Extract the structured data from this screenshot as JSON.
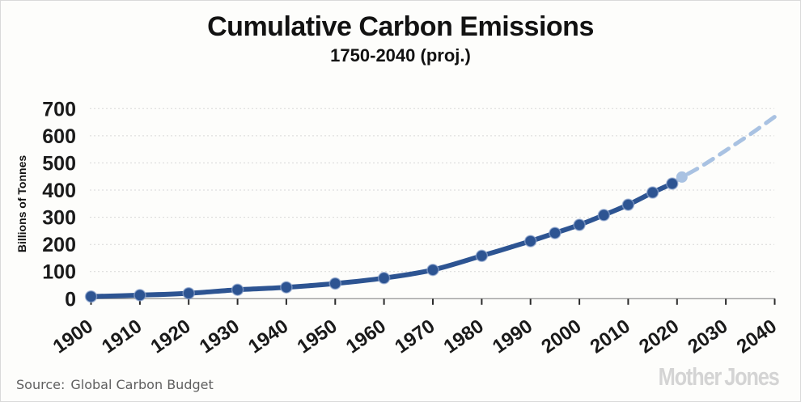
{
  "header": {
    "title": "Cumulative Carbon Emissions",
    "subtitle": "1750-2040 (proj.)"
  },
  "chart_data": {
    "type": "line",
    "title": "Cumulative Carbon Emissions",
    "subtitle": "1750-2040 (proj.)",
    "xlabel": "",
    "ylabel": "Billions of Tonnes",
    "xlim": [
      1900,
      2040
    ],
    "ylim": [
      0,
      700
    ],
    "x_ticks": [
      1900,
      1910,
      1920,
      1930,
      1940,
      1950,
      1960,
      1970,
      1980,
      1990,
      2000,
      2010,
      2020,
      2030,
      2040
    ],
    "y_ticks": [
      0,
      100,
      200,
      300,
      400,
      500,
      600,
      700
    ],
    "grid": "horizontal-dotted",
    "legend_position": "none",
    "series": [
      {
        "name": "historical",
        "style": "solid",
        "color": "#2d5492",
        "markers": "all",
        "x": [
          1900,
          1910,
          1920,
          1930,
          1940,
          1950,
          1960,
          1970,
          1980,
          1990,
          1995,
          2000,
          2005,
          2010,
          2015,
          2019
        ],
        "values": [
          8,
          13,
          20,
          33,
          42,
          56,
          76,
          106,
          158,
          212,
          242,
          272,
          308,
          346,
          391,
          424
        ]
      },
      {
        "name": "projected",
        "style": "dashed",
        "color": "#a9c2e2",
        "markers": "first",
        "x": [
          2021,
          2025,
          2030,
          2035,
          2040
        ],
        "values": [
          448,
          488,
          546,
          606,
          670
        ]
      }
    ]
  },
  "footer": {
    "source_label": "Source:",
    "source_value": "Global Carbon Budget",
    "logo": "Mother Jones"
  },
  "colors": {
    "solid_line": "#2d5492",
    "dashed_line": "#a9c2e2",
    "grid_line": "#d8d8d8",
    "axis_line": "#9c9c9c",
    "tick_mark": "#2b2b2b",
    "tick_text": "#1a1a1a",
    "source_text": "#5f5f5f",
    "logo_text": "#d4d4d4",
    "background": "#fdfdfb"
  }
}
